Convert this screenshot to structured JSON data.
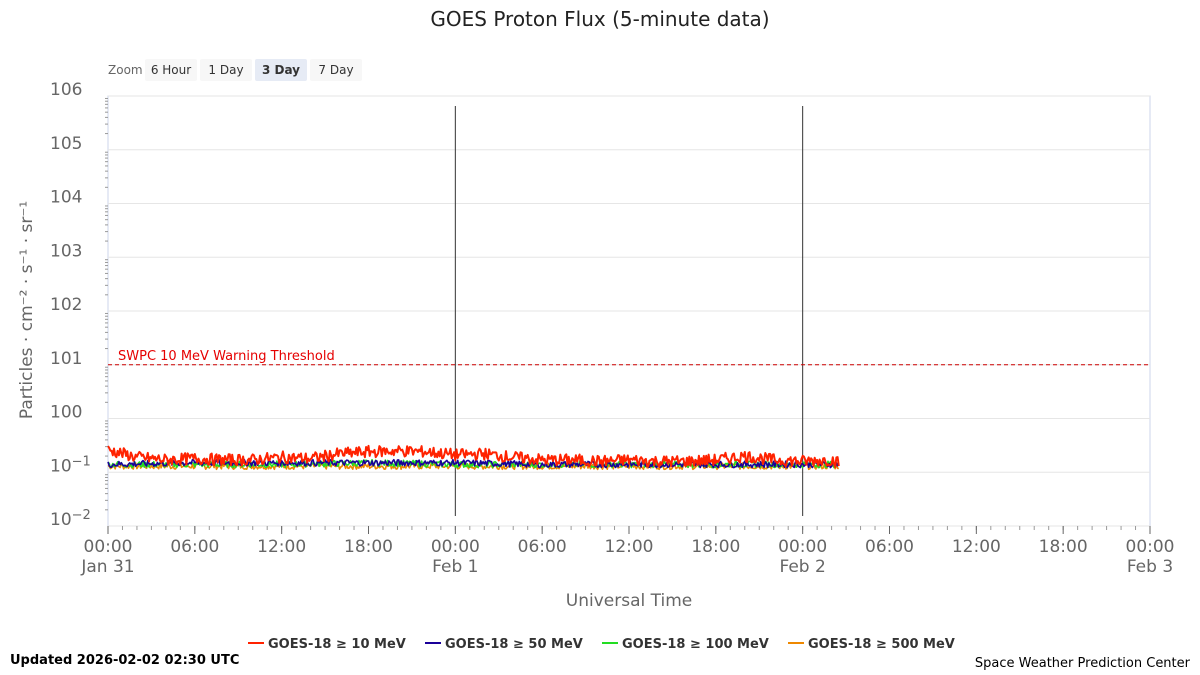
{
  "zoom": {
    "label": "Zoom",
    "buttons": [
      "6 Hour",
      "1 Day",
      "3 Day",
      "7 Day"
    ],
    "active_index": 2
  },
  "footer": {
    "updated": "Updated 2026-02-02 02:30 UTC",
    "credit": "Space Weather Prediction Center"
  },
  "chart_data": {
    "type": "line",
    "title": "GOES Proton Flux (5-minute data)",
    "xlabel": "Universal Time",
    "ylabel": "Particles · cm⁻² · s⁻¹ · sr⁻¹",
    "y_scale": "log",
    "ylim": [
      0.01,
      1000000
    ],
    "y_ticks": [
      {
        "base": "10",
        "exp": "6"
      },
      {
        "base": "10",
        "exp": "5"
      },
      {
        "base": "10",
        "exp": "4"
      },
      {
        "base": "10",
        "exp": "3"
      },
      {
        "base": "10",
        "exp": "2"
      },
      {
        "base": "10",
        "exp": "1"
      },
      {
        "base": "10",
        "exp": "0"
      },
      {
        "base": "10",
        "exp": "−1"
      },
      {
        "base": "10",
        "exp": "−2"
      }
    ],
    "xlim": [
      "2026-01-31 00:00",
      "2026-02-03 00:00"
    ],
    "x_ticks": [
      {
        "time": "00:00",
        "date": "Jan 31"
      },
      {
        "time": "06:00",
        "date": ""
      },
      {
        "time": "12:00",
        "date": ""
      },
      {
        "time": "18:00",
        "date": ""
      },
      {
        "time": "00:00",
        "date": "Feb 1"
      },
      {
        "time": "06:00",
        "date": ""
      },
      {
        "time": "12:00",
        "date": ""
      },
      {
        "time": "18:00",
        "date": ""
      },
      {
        "time": "00:00",
        "date": "Feb 2"
      },
      {
        "time": "06:00",
        "date": ""
      },
      {
        "time": "12:00",
        "date": ""
      },
      {
        "time": "18:00",
        "date": ""
      },
      {
        "time": "00:00",
        "date": "Feb 3"
      }
    ],
    "day_lines": [
      "2026-02-01 00:00",
      "2026-02-02 00:00"
    ],
    "threshold": {
      "label": "SWPC 10 MeV Warning Threshold",
      "value": 10,
      "color": "#cc0000"
    },
    "grid": true,
    "legend_position": "bottom",
    "series": [
      {
        "name": "GOES-18 ≥ 10 MeV",
        "color": "#ff2200",
        "points": [
          [
            "2026-01-31 00:00",
            0.26
          ],
          [
            "2026-01-31 02:00",
            0.19
          ],
          [
            "2026-01-31 04:00",
            0.17
          ],
          [
            "2026-01-31 06:00",
            0.18
          ],
          [
            "2026-01-31 08:00",
            0.17
          ],
          [
            "2026-01-31 10:00",
            0.17
          ],
          [
            "2026-01-31 12:00",
            0.19
          ],
          [
            "2026-01-31 14:00",
            0.18
          ],
          [
            "2026-01-31 16:00",
            0.22
          ],
          [
            "2026-01-31 18:00",
            0.24
          ],
          [
            "2026-01-31 20:00",
            0.25
          ],
          [
            "2026-01-31 22:00",
            0.24
          ],
          [
            "2026-02-01 00:00",
            0.21
          ],
          [
            "2026-02-01 02:00",
            0.22
          ],
          [
            "2026-02-01 04:00",
            0.19
          ],
          [
            "2026-02-01 06:00",
            0.17
          ],
          [
            "2026-02-01 08:00",
            0.17
          ],
          [
            "2026-02-01 10:00",
            0.16
          ],
          [
            "2026-02-01 12:00",
            0.17
          ],
          [
            "2026-02-01 14:00",
            0.16
          ],
          [
            "2026-02-01 16:00",
            0.16
          ],
          [
            "2026-02-01 18:00",
            0.17
          ],
          [
            "2026-02-01 20:00",
            0.2
          ],
          [
            "2026-02-01 22:00",
            0.17
          ],
          [
            "2026-02-02 00:00",
            0.16
          ],
          [
            "2026-02-02 02:00",
            0.17
          ],
          [
            "2026-02-02 02:30",
            0.15
          ]
        ]
      },
      {
        "name": "GOES-18 ≥ 50 MeV",
        "color": "#1a0099",
        "points": [
          [
            "2026-01-31 00:00",
            0.14
          ],
          [
            "2026-01-31 06:00",
            0.15
          ],
          [
            "2026-01-31 12:00",
            0.15
          ],
          [
            "2026-01-31 18:00",
            0.15
          ],
          [
            "2026-02-01 00:00",
            0.15
          ],
          [
            "2026-02-01 06:00",
            0.14
          ],
          [
            "2026-02-01 12:00",
            0.14
          ],
          [
            "2026-02-01 18:00",
            0.14
          ],
          [
            "2026-02-02 00:00",
            0.14
          ],
          [
            "2026-02-02 02:30",
            0.14
          ]
        ]
      },
      {
        "name": "GOES-18 ≥ 100 MeV",
        "color": "#22dd22",
        "points": [
          [
            "2026-01-31 00:00",
            0.14
          ],
          [
            "2026-01-31 06:00",
            0.14
          ],
          [
            "2026-01-31 12:00",
            0.14
          ],
          [
            "2026-01-31 18:00",
            0.15
          ],
          [
            "2026-02-01 00:00",
            0.14
          ],
          [
            "2026-02-01 06:00",
            0.14
          ],
          [
            "2026-02-01 12:00",
            0.14
          ],
          [
            "2026-02-01 18:00",
            0.14
          ],
          [
            "2026-02-02 00:00",
            0.14
          ],
          [
            "2026-02-02 02:30",
            0.14
          ]
        ]
      },
      {
        "name": "GOES-18 ≥ 500 MeV",
        "color": "#ee8800",
        "points": [
          [
            "2026-01-31 00:00",
            0.13
          ],
          [
            "2026-01-31 06:00",
            0.13
          ],
          [
            "2026-01-31 12:00",
            0.13
          ],
          [
            "2026-01-31 18:00",
            0.13
          ],
          [
            "2026-02-01 00:00",
            0.13
          ],
          [
            "2026-02-01 06:00",
            0.13
          ],
          [
            "2026-02-01 12:00",
            0.13
          ],
          [
            "2026-02-01 18:00",
            0.13
          ],
          [
            "2026-02-02 00:00",
            0.13
          ],
          [
            "2026-02-02 02:30",
            0.13
          ]
        ]
      }
    ]
  }
}
